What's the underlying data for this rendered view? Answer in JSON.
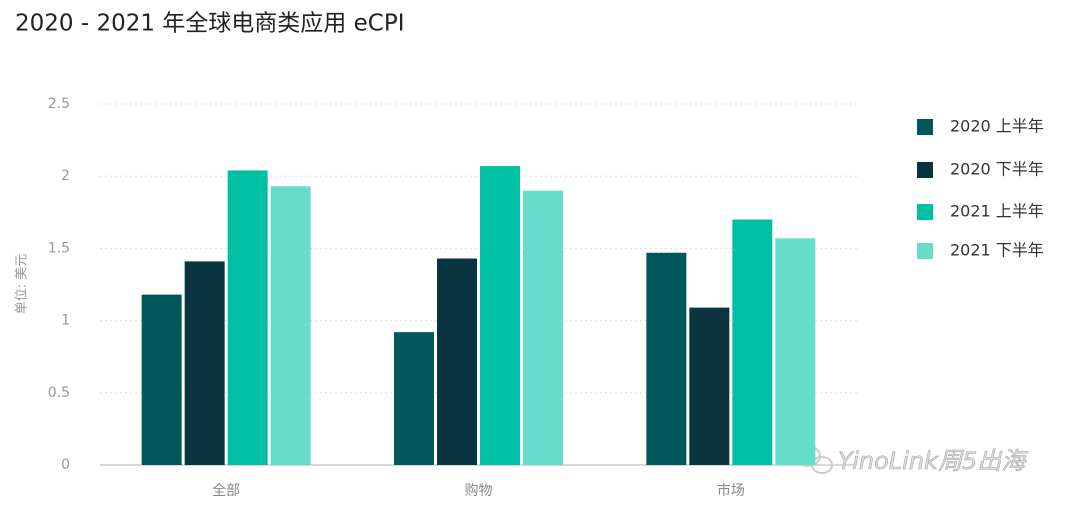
{
  "chart_data": {
    "type": "bar",
    "title": "2020 - 2021 年全球电商类应用 eCPI",
    "y_label": "单位: 美元",
    "categories": [
      "全部",
      "购物",
      "市场"
    ],
    "series": [
      {
        "name": "2020 上半年",
        "color": "#00585a",
        "values": [
          1.18,
          0.92,
          1.47
        ]
      },
      {
        "name": "2020 下半年",
        "color": "#0a3540",
        "values": [
          1.41,
          1.43,
          1.09
        ]
      },
      {
        "name": "2021 上半年",
        "color": "#00c0a3",
        "values": [
          2.04,
          2.07,
          1.7
        ]
      },
      {
        "name": "2021 下半年",
        "color": "#66dccb",
        "values": [
          1.93,
          1.9,
          1.57
        ]
      }
    ],
    "ylim": [
      0,
      2.5
    ],
    "yticks": [
      0,
      0.5,
      1,
      1.5,
      2,
      2.5
    ],
    "grid": true,
    "legend": "right",
    "annotation": "YinoLink周5出海"
  }
}
